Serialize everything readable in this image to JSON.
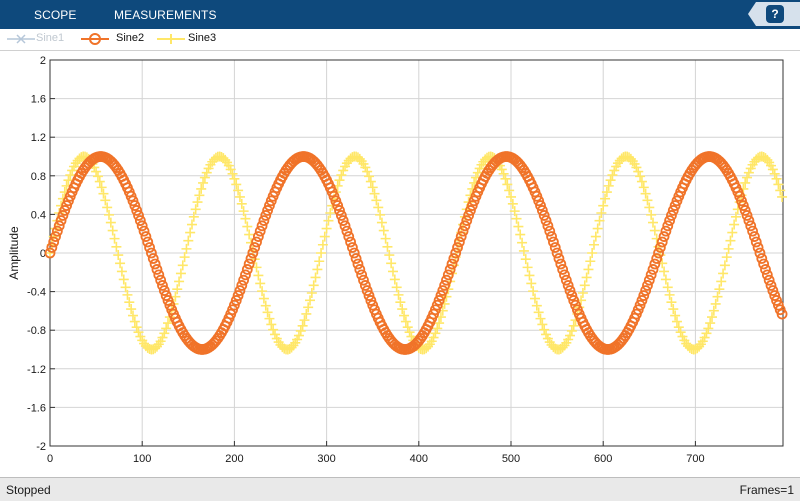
{
  "toolstrip": {
    "tabs": [
      "SCOPE",
      "MEASUREMENTS"
    ],
    "help_label": "?",
    "background": "#0e497c"
  },
  "legend": [
    {
      "name": "Sine1",
      "color": "#b6c7d9",
      "marker": "x",
      "enabled": false
    },
    {
      "name": "Sine2",
      "color": "#f07329",
      "marker": "o",
      "enabled": true
    },
    {
      "name": "Sine3",
      "color": "#ffe768",
      "marker": "+",
      "enabled": true
    }
  ],
  "status": {
    "left": "Stopped",
    "right": "Frames=1"
  },
  "chart_data": {
    "type": "line",
    "ylabel": "Amplitude",
    "xlabel": "",
    "xlim": [
      0,
      795
    ],
    "ylim": [
      -2,
      2
    ],
    "x_ticks": [
      0,
      100,
      200,
      300,
      400,
      500,
      600,
      700
    ],
    "y_ticks": [
      "2",
      "1.6",
      "1.2",
      "0.8",
      "0.4",
      "0",
      "-0.4",
      "-0.8",
      "-1.2",
      "-1.6",
      "-2"
    ],
    "grid": true,
    "series": [
      {
        "name": "Sine2",
        "color": "#f07329",
        "marker": "o",
        "amplitude": 1,
        "period": 220,
        "x_range": [
          0,
          795
        ]
      },
      {
        "name": "Sine3",
        "color": "#ffe768",
        "marker": "+",
        "amplitude": 1,
        "period": 147,
        "x_range": [
          0,
          795
        ]
      }
    ]
  }
}
